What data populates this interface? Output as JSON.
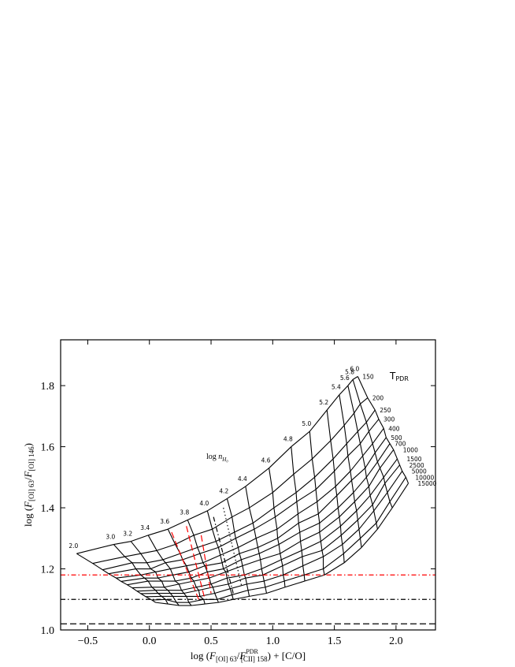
{
  "chart_data": {
    "type": "grid",
    "xlim": [
      -0.72,
      2.32
    ],
    "ylim": [
      1.0,
      1.95
    ],
    "xticks": [
      {
        "value": -0.5,
        "label": "−0.5"
      },
      {
        "value": 0,
        "label": "0.0"
      },
      0.5,
      {
        "value": 1,
        "label": "1.0"
      },
      1.5,
      {
        "value": 2,
        "label": "2.0"
      }
    ],
    "yticks": [
      {
        "value": 1,
        "label": "1.0"
      },
      1.2,
      1.4,
      1.6,
      1.8
    ],
    "xlabel": {
      "a": "log (",
      "f1": "F",
      "s1": "[OI] 63",
      "slash": "/",
      "f2": "F",
      "sup": "PDR",
      "s2": "[CII] 158",
      "b": ") + [C/O]"
    },
    "ylabel": {
      "a": "log (",
      "f1": "F",
      "s1": "[OI] 63",
      "slash": "/",
      "f2": "F",
      "s2": "[OI] 146",
      "b": ")"
    },
    "density_title": {
      "a": "log ",
      "n": "n",
      "sub": "H₀"
    },
    "temperature_title": {
      "a": "T",
      "sub": "PDR"
    },
    "grid": {
      "densities": [
        "2.0",
        "3.0",
        "3.2",
        "3.4",
        "3.6",
        "3.8",
        "4.0",
        "4.2",
        "4.4",
        "4.6",
        "4.8",
        "5.0",
        "5.2",
        "5.4",
        "5.6",
        "5.8",
        "6.0"
      ],
      "temperatures": [
        "150",
        "200",
        "250",
        "300",
        "400",
        "500",
        "700",
        "1000",
        "1500",
        "2500",
        "5000",
        "10000",
        "15000"
      ],
      "x": [
        [
          -0.59,
          -0.46,
          -0.38,
          -0.33,
          -0.27,
          -0.23,
          -0.18,
          -0.14,
          -0.1,
          -0.07,
          -0.03,
          0.02,
          0.05
        ],
        [
          -0.29,
          -0.2,
          -0.14,
          -0.11,
          -0.07,
          -0.04,
          -0.01,
          0.02,
          0.05,
          0.07,
          0.1,
          0.13,
          0.15
        ],
        [
          -0.15,
          -0.07,
          -0.02,
          0.01,
          0.05,
          0.07,
          0.1,
          0.12,
          0.15,
          0.17,
          0.19,
          0.22,
          0.24
        ],
        [
          -0.01,
          0.06,
          0.11,
          0.13,
          0.17,
          0.19,
          0.21,
          0.24,
          0.26,
          0.28,
          0.3,
          0.32,
          0.34
        ],
        [
          0.15,
          0.21,
          0.25,
          0.27,
          0.3,
          0.32,
          0.34,
          0.36,
          0.38,
          0.4,
          0.41,
          0.44,
          0.45
        ],
        [
          0.31,
          0.36,
          0.39,
          0.41,
          0.435,
          0.45,
          0.47,
          0.485,
          0.5,
          0.515,
          0.53,
          0.55,
          0.56
        ],
        [
          0.47,
          0.51,
          0.54,
          0.56,
          0.575,
          0.59,
          0.6,
          0.62,
          0.63,
          0.64,
          0.655,
          0.67,
          0.68
        ],
        [
          0.63,
          0.67,
          0.69,
          0.7,
          0.72,
          0.73,
          0.745,
          0.755,
          0.77,
          0.78,
          0.79,
          0.8,
          0.81
        ],
        [
          0.78,
          0.81,
          0.84,
          0.85,
          0.865,
          0.88,
          0.89,
          0.9,
          0.91,
          0.92,
          0.93,
          0.94,
          0.95
        ],
        [
          0.97,
          1.0,
          1.01,
          1.02,
          1.035,
          1.04,
          1.05,
          1.06,
          1.07,
          1.08,
          1.085,
          1.095,
          1.1
        ],
        [
          1.15,
          1.17,
          1.19,
          1.195,
          1.205,
          1.21,
          1.22,
          1.225,
          1.235,
          1.24,
          1.245,
          1.255,
          1.26
        ],
        [
          1.3,
          1.32,
          1.34,
          1.35,
          1.36,
          1.37,
          1.38,
          1.38,
          1.39,
          1.4,
          1.41,
          1.41,
          1.42
        ],
        [
          1.44,
          1.47,
          1.49,
          1.5,
          1.51,
          1.52,
          1.53,
          1.54,
          1.55,
          1.555,
          1.565,
          1.575,
          1.58
        ],
        [
          1.54,
          1.58,
          1.6,
          1.61,
          1.63,
          1.64,
          1.655,
          1.665,
          1.68,
          1.69,
          1.7,
          1.71,
          1.72
        ],
        [
          1.61,
          1.66,
          1.69,
          1.71,
          1.73,
          1.75,
          1.76,
          1.78,
          1.79,
          1.81,
          1.82,
          1.84,
          1.85
        ],
        [
          1.65,
          1.71,
          1.76,
          1.78,
          1.81,
          1.83,
          1.85,
          1.87,
          1.9,
          1.91,
          1.93,
          1.95,
          1.97
        ],
        [
          1.69,
          1.77,
          1.83,
          1.86,
          1.9,
          1.92,
          1.95,
          1.98,
          2.01,
          2.03,
          2.05,
          2.08,
          2.1
        ]
      ],
      "y": [
        [
          1.25,
          1.218,
          1.197,
          1.184,
          1.17,
          1.159,
          1.148,
          1.138,
          1.127,
          1.119,
          1.109,
          1.098,
          1.09
        ],
        [
          1.28,
          1.24,
          1.22,
          1.2,
          1.18,
          1.17,
          1.16,
          1.14,
          1.13,
          1.12,
          1.11,
          1.1,
          1.085
        ],
        [
          1.29,
          1.25,
          1.22,
          1.2,
          1.19,
          1.17,
          1.16,
          1.14,
          1.13,
          1.12,
          1.11,
          1.09,
          1.08
        ],
        [
          1.31,
          1.26,
          1.23,
          1.22,
          1.2,
          1.18,
          1.16,
          1.15,
          1.13,
          1.12,
          1.11,
          1.09,
          1.08
        ],
        [
          1.33,
          1.28,
          1.25,
          1.23,
          1.21,
          1.19,
          1.17,
          1.16,
          1.14,
          1.13,
          1.11,
          1.1,
          1.085
        ],
        [
          1.36,
          1.31,
          1.27,
          1.25,
          1.22,
          1.21,
          1.19,
          1.17,
          1.15,
          1.14,
          1.12,
          1.1,
          1.09
        ],
        [
          1.39,
          1.33,
          1.29,
          1.27,
          1.245,
          1.22,
          1.2,
          1.19,
          1.17,
          1.15,
          1.135,
          1.115,
          1.1
        ],
        [
          1.43,
          1.37,
          1.32,
          1.3,
          1.27,
          1.25,
          1.23,
          1.21,
          1.18,
          1.17,
          1.15,
          1.13,
          1.11
        ],
        [
          1.47,
          1.4,
          1.35,
          1.33,
          1.3,
          1.27,
          1.25,
          1.23,
          1.2,
          1.18,
          1.16,
          1.14,
          1.12
        ],
        [
          1.53,
          1.45,
          1.4,
          1.37,
          1.33,
          1.3,
          1.28,
          1.25,
          1.23,
          1.21,
          1.18,
          1.16,
          1.14
        ],
        [
          1.6,
          1.51,
          1.45,
          1.42,
          1.38,
          1.35,
          1.32,
          1.29,
          1.26,
          1.24,
          1.21,
          1.18,
          1.16
        ],
        [
          1.65,
          1.56,
          1.5,
          1.46,
          1.42,
          1.38,
          1.35,
          1.32,
          1.29,
          1.26,
          1.24,
          1.2,
          1.18
        ],
        [
          1.72,
          1.62,
          1.56,
          1.52,
          1.47,
          1.44,
          1.4,
          1.37,
          1.34,
          1.31,
          1.28,
          1.25,
          1.22
        ],
        [
          1.77,
          1.67,
          1.61,
          1.57,
          1.52,
          1.49,
          1.45,
          1.42,
          1.39,
          1.36,
          1.33,
          1.3,
          1.27
        ],
        [
          1.8,
          1.71,
          1.65,
          1.61,
          1.57,
          1.53,
          1.5,
          1.47,
          1.44,
          1.41,
          1.39,
          1.35,
          1.33
        ],
        [
          1.82,
          1.74,
          1.68,
          1.65,
          1.61,
          1.58,
          1.55,
          1.53,
          1.5,
          1.48,
          1.45,
          1.42,
          1.4
        ],
        [
          1.83,
          1.76,
          1.72,
          1.69,
          1.66,
          1.63,
          1.61,
          1.59,
          1.56,
          1.54,
          1.52,
          1.5,
          1.48
        ]
      ]
    },
    "hlines": [
      {
        "y": 1.18,
        "color": "#ff0000",
        "style": "dashdot"
      },
      {
        "y": 1.1,
        "color": "#000000",
        "style": "dashdot"
      },
      {
        "y": 1.02,
        "color": "#000000",
        "style": "dashed"
      }
    ],
    "overlays": [
      {
        "color": "#ff0000",
        "style": "dashed",
        "x": [
          0.18,
          0.4
        ],
        "y": [
          1.32,
          1.1
        ]
      },
      {
        "color": "#ff0000",
        "style": "dashed",
        "x": [
          0.3,
          0.45
        ],
        "y": [
          1.34,
          1.1
        ]
      },
      {
        "color": "#ff0000",
        "style": "dashed",
        "x": [
          0.42,
          0.5
        ],
        "y": [
          1.31,
          1.12
        ]
      },
      {
        "color": "#000000",
        "style": "dashdot",
        "x": [
          0.52,
          0.68
        ],
        "y": [
          1.37,
          1.12
        ]
      },
      {
        "color": "#000000",
        "style": "dotted",
        "x": [
          0.6,
          0.75
        ],
        "y": [
          1.4,
          1.14
        ]
      }
    ]
  }
}
